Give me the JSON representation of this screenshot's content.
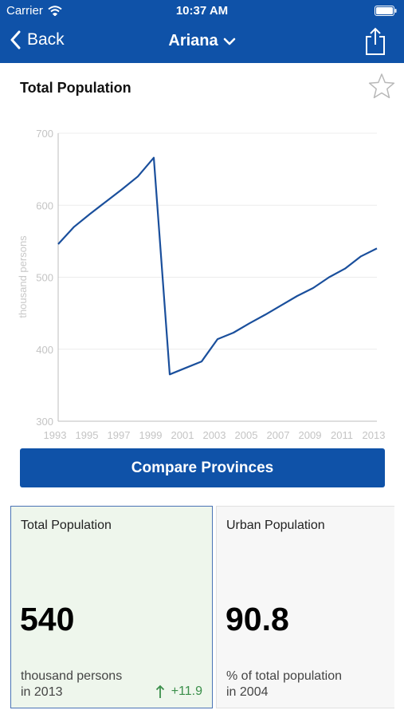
{
  "status_bar": {
    "carrier": "Carrier",
    "time": "10:37 AM"
  },
  "nav": {
    "back_label": "Back",
    "title": "Ariana"
  },
  "chart_title": "Total Population",
  "chart_data": {
    "type": "line",
    "title": "Total Population",
    "xlabel": "",
    "ylabel": "thousand persons",
    "xlim": [
      1993,
      2013
    ],
    "ylim": [
      300,
      700
    ],
    "yticks": [
      300,
      400,
      500,
      600,
      700
    ],
    "xticks": [
      1993,
      1995,
      1997,
      1999,
      2001,
      2003,
      2005,
      2007,
      2009,
      2011,
      2013
    ],
    "grid": true,
    "line_color": "#1a4f9c",
    "x": [
      1993,
      1994,
      1995,
      1996,
      1997,
      1998,
      1999,
      2000,
      2001,
      2002,
      2003,
      2004,
      2005,
      2006,
      2007,
      2008,
      2009,
      2010,
      2011,
      2012,
      2013
    ],
    "values": [
      546,
      570,
      588,
      605,
      622,
      640,
      666,
      365,
      374,
      383,
      414,
      423,
      436,
      448,
      461,
      474,
      485,
      500,
      512,
      529,
      540
    ]
  },
  "compare_button_label": "Compare Provinces",
  "cards": {
    "total": {
      "label": "Total Population",
      "value": "540",
      "unit": "thousand persons",
      "year": "in 2013",
      "change": "+11.9"
    },
    "urban": {
      "label": "Urban Population",
      "value": "90.8",
      "unit": "% of total population",
      "year": "in 2004"
    }
  },
  "colors": {
    "brand": "#0f52a8",
    "positive": "#3a8f4a",
    "card_highlight": "#eef6ec"
  }
}
